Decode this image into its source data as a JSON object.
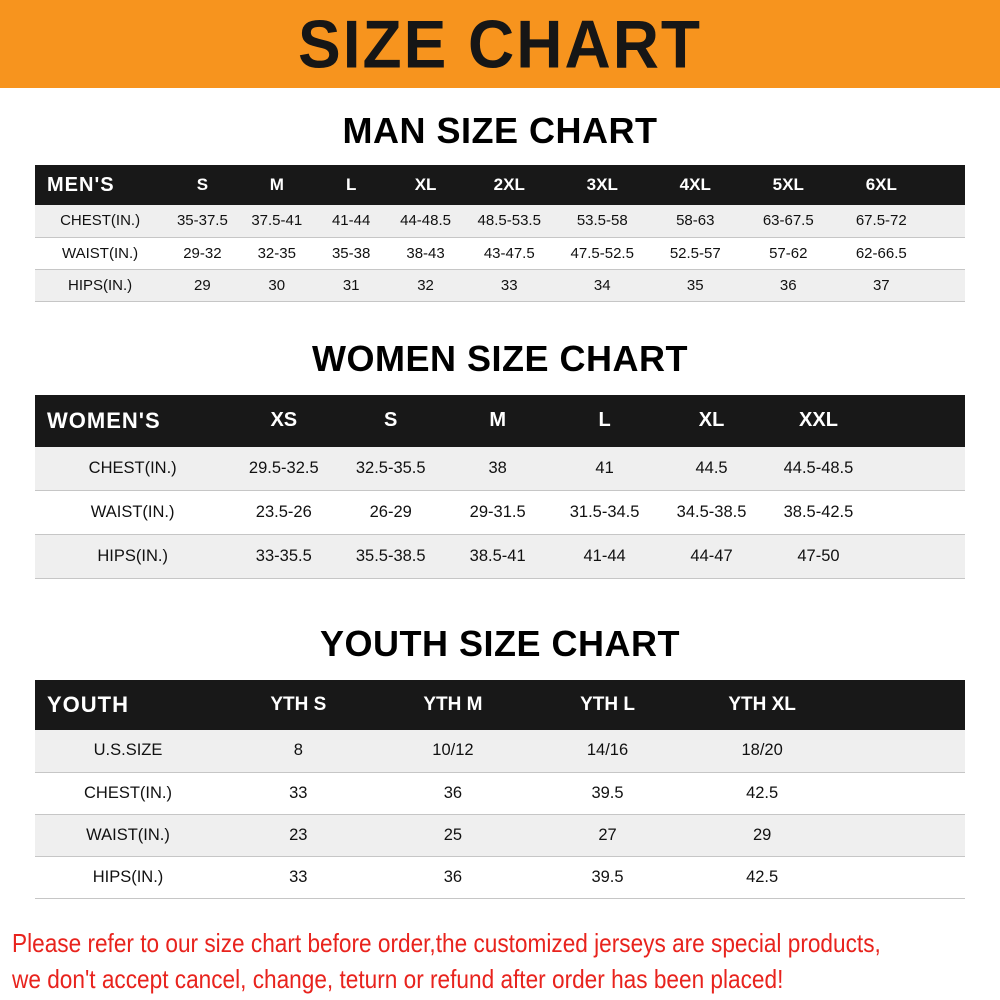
{
  "banner": {
    "title": "SIZE CHART"
  },
  "colors": {
    "banner_bg": "#f7941e",
    "banner_text": "#161616",
    "head_bg": "#181818",
    "head_text": "#ffffff",
    "stripe": "#efefef",
    "notice_text": "#e8231d"
  },
  "chart_data": [
    {
      "type": "table",
      "title": "MAN SIZE CHART",
      "header_label": "MEN'S",
      "columns": [
        "S",
        "M",
        "L",
        "XL",
        "2XL",
        "3XL",
        "4XL",
        "5XL",
        "6XL"
      ],
      "rows": [
        {
          "label": "CHEST(IN.)",
          "values": [
            "35-37.5",
            "37.5-41",
            "41-44",
            "44-48.5",
            "48.5-53.5",
            "53.5-58",
            "58-63",
            "63-67.5",
            "67.5-72"
          ]
        },
        {
          "label": "WAIST(IN.)",
          "values": [
            "29-32",
            "32-35",
            "35-38",
            "38-43",
            "43-47.5",
            "47.5-52.5",
            "52.5-57",
            "57-62",
            "62-66.5"
          ]
        },
        {
          "label": "HIPS(IN.)",
          "values": [
            "29",
            "30",
            "31",
            "32",
            "33",
            "34",
            "35",
            "36",
            "37"
          ]
        }
      ]
    },
    {
      "type": "table",
      "title": "WOMEN SIZE CHART",
      "header_label": "WOMEN'S",
      "columns": [
        "XS",
        "S",
        "M",
        "L",
        "XL",
        "XXL"
      ],
      "rows": [
        {
          "label": "CHEST(IN.)",
          "values": [
            "29.5-32.5",
            "32.5-35.5",
            "38",
            "41",
            "44.5",
            "44.5-48.5"
          ]
        },
        {
          "label": "WAIST(IN.)",
          "values": [
            "23.5-26",
            "26-29",
            "29-31.5",
            "31.5-34.5",
            "34.5-38.5",
            "38.5-42.5"
          ]
        },
        {
          "label": "HIPS(IN.)",
          "values": [
            "33-35.5",
            "35.5-38.5",
            "38.5-41",
            "41-44",
            "44-47",
            "47-50"
          ]
        }
      ]
    },
    {
      "type": "table",
      "title": "YOUTH SIZE CHART",
      "header_label": "YOUTH",
      "columns": [
        "YTH S",
        "YTH M",
        "YTH L",
        "YTH XL"
      ],
      "rows": [
        {
          "label": "U.S.SIZE",
          "values": [
            "8",
            "10/12",
            "14/16",
            "18/20"
          ]
        },
        {
          "label": "CHEST(IN.)",
          "values": [
            "33",
            "36",
            "39.5",
            "42.5"
          ]
        },
        {
          "label": "WAIST(IN.)",
          "values": [
            "23",
            "25",
            "27",
            "29"
          ]
        },
        {
          "label": "HIPS(IN.)",
          "values": [
            "33",
            "36",
            "39.5",
            "42.5"
          ]
        }
      ]
    }
  ],
  "footer": {
    "lines": [
      "Please refer to our size chart before order,the customized jerseys are special products,",
      "we don't accept cancel, change, teturn or refund after order has been placed!"
    ]
  }
}
